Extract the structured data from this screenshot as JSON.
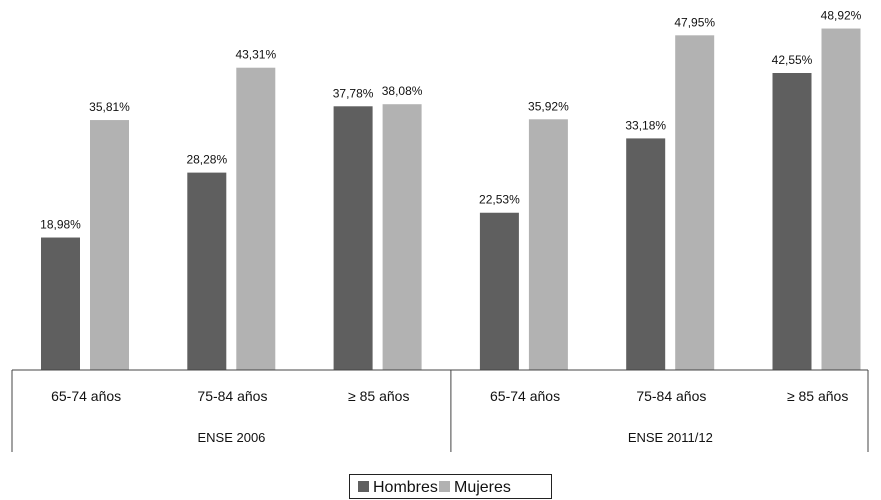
{
  "chart_data": {
    "type": "bar",
    "groups": [
      {
        "label": "ENSE 2006",
        "categories": [
          "65-74 años",
          "75-84 años",
          "≥ 85 años"
        ],
        "series": [
          {
            "name": "Hombres",
            "values": [
              18.98,
              28.28,
              37.78
            ],
            "labels": [
              "18,98%",
              "28,28%",
              "37,78%"
            ]
          },
          {
            "name": "Mujeres",
            "values": [
              35.81,
              43.31,
              38.08
            ],
            "labels": [
              "35,81%",
              "43,31%",
              "38,08%"
            ]
          }
        ]
      },
      {
        "label": "ENSE 2011/12",
        "categories": [
          "65-74 años",
          "75-84 años",
          "≥ 85 años"
        ],
        "series": [
          {
            "name": "Hombres",
            "values": [
              22.53,
              33.18,
              42.55
            ],
            "labels": [
              "22,53%",
              "33,18%",
              "42,55%"
            ]
          },
          {
            "name": "Mujeres",
            "values": [
              35.92,
              47.95,
              48.92
            ],
            "labels": [
              "35,92%",
              "47,95%",
              "48,92%"
            ]
          }
        ]
      }
    ],
    "legend": {
      "position": "bottom",
      "items": [
        {
          "name": "Hombres",
          "color": "#5f5f5f"
        },
        {
          "name": "Mujeres",
          "color": "#b2b2b2"
        }
      ]
    },
    "ylim": [
      0,
      50
    ],
    "grid": false
  }
}
